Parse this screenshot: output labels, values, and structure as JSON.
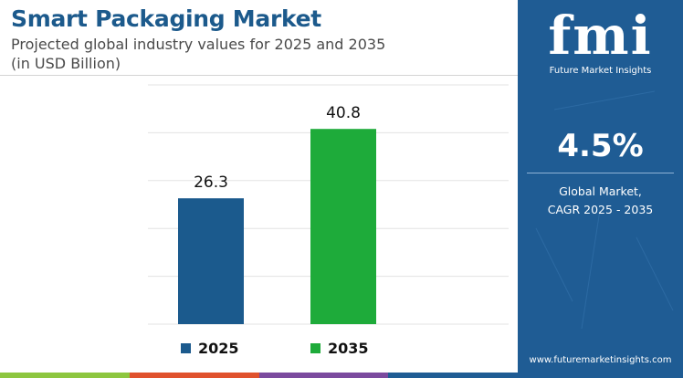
{
  "header": {
    "title": "Smart Packaging Market",
    "subtitle_line1": "Projected global industry values for 2025 and 2035",
    "subtitle_line2": "(in USD Billion)"
  },
  "chart_data": {
    "type": "bar",
    "categories": [
      "2025",
      "2035"
    ],
    "values": [
      26.3,
      40.8
    ],
    "data_labels": [
      "26.3",
      "40.8"
    ],
    "colors": [
      "#1b5a8d",
      "#1eab3a"
    ],
    "ylim": [
      0,
      50
    ],
    "grid": true,
    "legend": "bottom",
    "legend_entries": [
      "2025",
      "2035"
    ],
    "title": "Smart Packaging Market",
    "xlabel": "",
    "ylabel": ""
  },
  "side_panel": {
    "logo_text": "fmi",
    "logo_subtitle": "Future Market Insights",
    "cagr_value": "4.5%",
    "cagr_label_line1": "Global Market,",
    "cagr_label_line2": "CAGR 2025 - 2035",
    "website": "www.futuremarketinsights.com",
    "background_color": "#1f5c94"
  },
  "bottom_bar_colors": [
    "#8dc63f",
    "#e0522d",
    "#7b4a9e",
    "#1f5c94"
  ]
}
